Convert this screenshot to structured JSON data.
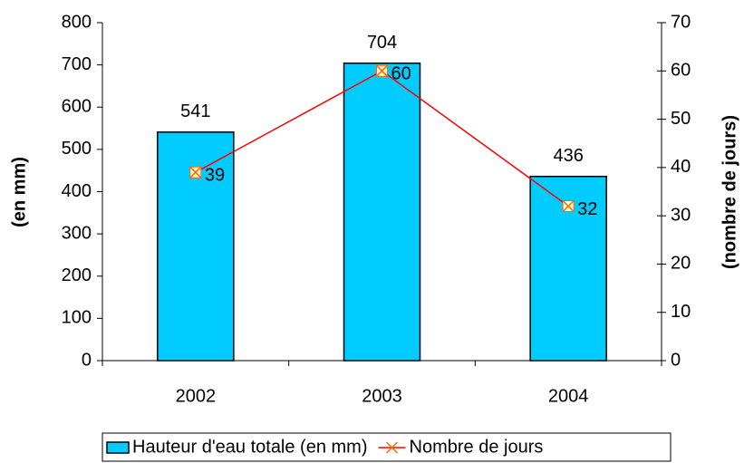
{
  "chart_data": {
    "type": "bar",
    "categories": [
      "2002",
      "2003",
      "2004"
    ],
    "series": [
      {
        "name": "Hauteur d'eau totale (en mm)",
        "type": "bar",
        "color": "#00ccff",
        "values": [
          541,
          704,
          436
        ]
      },
      {
        "name": "Nombre de jours",
        "type": "line",
        "axis": "y2",
        "color": "#ff0000",
        "marker_color": "#ff6600",
        "values": [
          39,
          60,
          32
        ]
      }
    ],
    "ylabel": "(en mm)",
    "y2label": "(nombre de jours)",
    "ylim": [
      0,
      800
    ],
    "yticks": [
      0,
      100,
      200,
      300,
      400,
      500,
      600,
      700,
      800
    ],
    "y2lim": [
      0,
      70
    ],
    "y2ticks": [
      0,
      10,
      20,
      30,
      40,
      50,
      60,
      70
    ],
    "grid": false,
    "legend": "bottom"
  }
}
